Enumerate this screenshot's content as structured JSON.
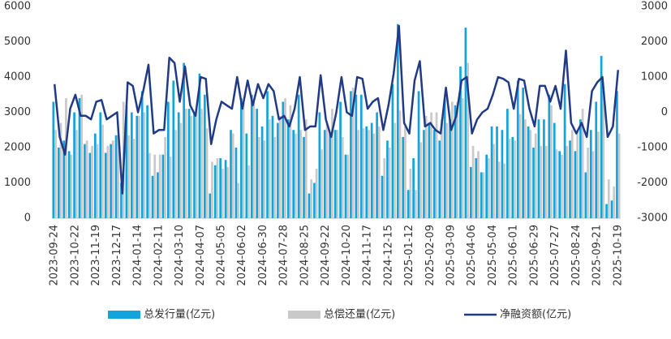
{
  "chart_data": {
    "type": "bar-line",
    "categories": [
      "2023-09-24",
      null,
      null,
      null,
      "2023-10-22",
      null,
      null,
      null,
      "2023-11-19",
      null,
      null,
      null,
      "2023-12-17",
      null,
      null,
      null,
      "2024-01-14",
      null,
      null,
      null,
      "2024-02-11",
      null,
      null,
      null,
      "2024-03-10",
      null,
      null,
      null,
      "2024-04-07",
      null,
      null,
      null,
      "2024-05-05",
      null,
      null,
      null,
      "2024-06-02",
      null,
      null,
      null,
      "2024-06-30",
      null,
      null,
      null,
      "2024-07-28",
      null,
      null,
      null,
      "2024-08-25",
      null,
      null,
      null,
      "2024-09-22",
      null,
      null,
      null,
      "2024-10-20",
      null,
      null,
      null,
      "2024-11-17",
      null,
      null,
      null,
      "2024-12-15",
      null,
      null,
      null,
      "2025-01-12",
      null,
      null,
      null,
      "2025-02-09",
      null,
      null,
      null,
      "2025-03-09",
      null,
      null,
      null,
      "2025-04-06",
      null,
      null,
      null,
      "2025-05-04",
      null,
      null,
      null,
      "2025-06-01",
      null,
      null,
      null,
      "2025-06-29",
      null,
      null,
      null,
      "2025-07-27",
      null,
      null,
      null,
      "2025-08-24",
      null,
      null,
      null,
      "2025-09-21",
      null,
      null,
      null,
      "2025-10-19"
    ],
    "series": [
      {
        "name": "总发行量(亿元)",
        "color": "#13a4dd",
        "axis": "y",
        "values": [
          3300,
          2000,
          2200,
          1900,
          3000,
          3400,
          2100,
          1850,
          2400,
          3000,
          1850,
          2100,
          2350,
          1000,
          3200,
          3000,
          2900,
          3600,
          3200,
          1200,
          1300,
          1800,
          3300,
          3900,
          3000,
          4400,
          3100,
          3000,
          4100,
          3500,
          700,
          1500,
          1700,
          1650,
          2500,
          2000,
          3400,
          2400,
          3500,
          3100,
          2600,
          3600,
          2900,
          2700,
          3300,
          2800,
          2500,
          3500,
          2300,
          700,
          1000,
          3000,
          2500,
          2400,
          2500,
          3300,
          1800,
          3600,
          3500,
          3500,
          2600,
          2700,
          3000,
          1200,
          2200,
          3800,
          5500,
          2300,
          800,
          1700,
          3600,
          2500,
          2700,
          2500,
          2200,
          3400,
          2800,
          3200,
          4300,
          5400,
          1450,
          1700,
          1300,
          1800,
          2600,
          2600,
          2500,
          3100,
          2300,
          3900,
          3700,
          2600,
          2000,
          2800,
          2800,
          3500,
          2700,
          1900,
          3800,
          2200,
          1900,
          2800,
          1300,
          2500,
          3300,
          4600,
          400,
          500,
          3600
        ]
      },
      {
        "name": "总偿还量(亿元)",
        "color": "#c9c9c9",
        "axis": "y",
        "values": [
          2500,
          2700,
          3400,
          1800,
          2500,
          3500,
          2200,
          2050,
          2100,
          2650,
          2050,
          2200,
          2350,
          3300,
          2350,
          2250,
          2900,
          3000,
          1850,
          1800,
          1800,
          2300,
          1750,
          2500,
          2700,
          3100,
          2900,
          3100,
          3100,
          2550,
          1600,
          1700,
          1400,
          1450,
          2400,
          1000,
          3300,
          1500,
          3300,
          2300,
          2200,
          2800,
          2300,
          2900,
          3400,
          3200,
          2400,
          2500,
          2800,
          1100,
          1400,
          1950,
          2700,
          3100,
          2500,
          2300,
          1800,
          3700,
          2500,
          2550,
          2500,
          2400,
          2600,
          1700,
          2000,
          2700,
          3050,
          2600,
          1400,
          800,
          2150,
          2900,
          3000,
          3000,
          2800,
          2700,
          3300,
          3300,
          3400,
          4400,
          2050,
          1900,
          1300,
          1700,
          2100,
          1600,
          1550,
          2250,
          2200,
          2950,
          2800,
          2500,
          2400,
          2050,
          2050,
          3200,
          1950,
          1800,
          2050,
          2500,
          2500,
          3100,
          2000,
          1900,
          2450,
          3600,
          1100,
          900,
          2400
        ]
      },
      {
        "name": "净融资额(亿元)",
        "color": "#203a86",
        "axis": "y2",
        "values": [
          800,
          -700,
          -1200,
          100,
          500,
          -100,
          -100,
          -200,
          300,
          350,
          -200,
          -100,
          0,
          -2300,
          850,
          750,
          0,
          600,
          1350,
          -600,
          -500,
          -500,
          1550,
          1400,
          300,
          1300,
          200,
          -100,
          1000,
          950,
          -900,
          -200,
          300,
          200,
          100,
          1000,
          100,
          900,
          200,
          800,
          400,
          800,
          600,
          -200,
          -100,
          -400,
          100,
          1000,
          -500,
          -400,
          -400,
          1050,
          -200,
          -700,
          0,
          1000,
          0,
          -100,
          1000,
          950,
          100,
          300,
          400,
          -500,
          200,
          1100,
          2450,
          -300,
          -600,
          900,
          1450,
          -400,
          -300,
          -500,
          -600,
          700,
          -500,
          -100,
          900,
          1000,
          -600,
          -200,
          0,
          100,
          500,
          1000,
          950,
          850,
          100,
          950,
          900,
          100,
          -400,
          750,
          750,
          300,
          750,
          100,
          1750,
          -300,
          -600,
          -300,
          -700,
          600,
          850,
          1000,
          -700,
          -400,
          1200
        ]
      }
    ],
    "ylim": [
      0,
      6000
    ],
    "yticks": [
      0,
      1000,
      2000,
      3000,
      4000,
      5000,
      6000
    ],
    "y2lim": [
      -3000,
      3000
    ],
    "y2ticks": [
      -3000,
      -2000,
      -1000,
      0,
      1000,
      2000,
      3000
    ],
    "legend": "bottom"
  }
}
